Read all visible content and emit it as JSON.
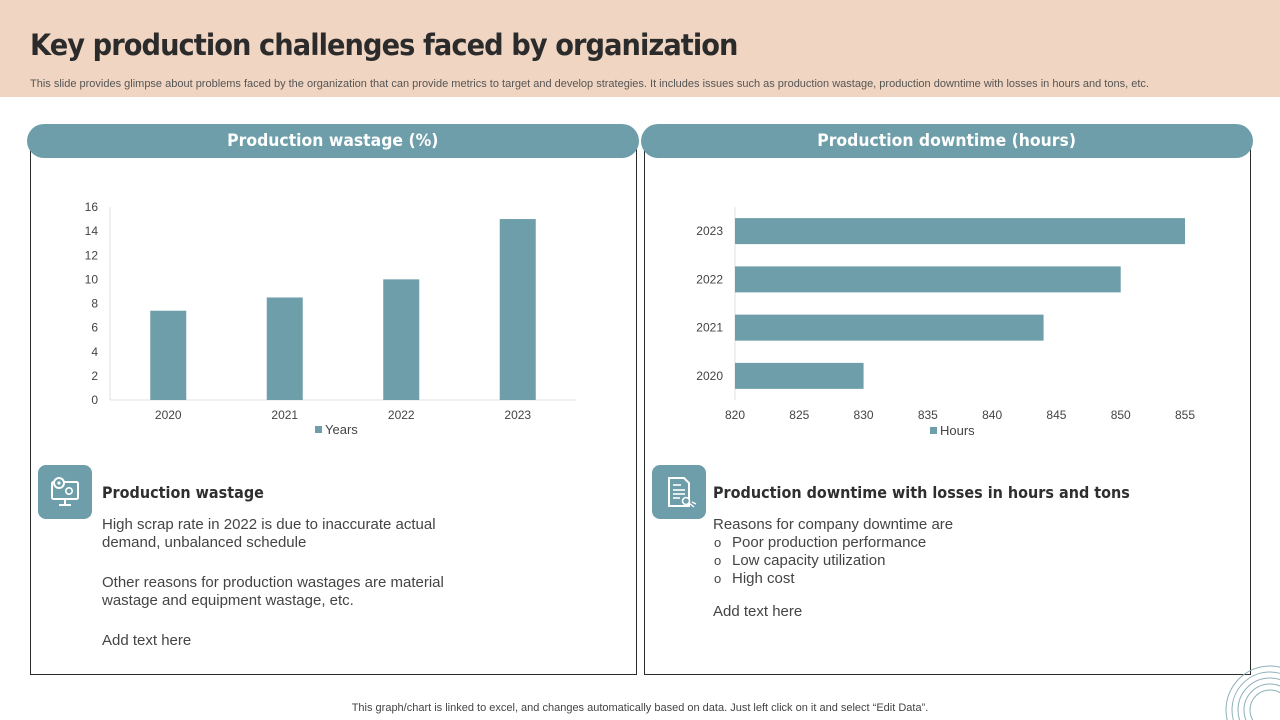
{
  "title": "Key production challenges faced by organization",
  "subtitle": "This slide provides glimpse about problems faced by the organization that can provide metrics to target and develop strategies. It includes issues such as production wastage, production downtime with losses in hours and tons, etc.",
  "colors": {
    "accent": "#6d9ea9",
    "header_bg": "#f0d5c2"
  },
  "left_panel": {
    "heading": "Production wastage (%)",
    "icon": "gear-monitor-icon",
    "section_title": "Production wastage",
    "para1": "High scrap rate in 2022 is due to inaccurate actual demand, unbalanced schedule",
    "para2": "Other reasons for production wastages are material wastage and equipment wastage, etc.",
    "add_text": "Add text here"
  },
  "right_panel": {
    "heading": "Production downtime (hours)",
    "icon": "document-certificate-icon",
    "section_title": "Production downtime with losses in hours and tons",
    "intro": "Reasons for company downtime are",
    "bullets": [
      "Poor production performance",
      "Low capacity utilization",
      "High cost"
    ],
    "add_text": "Add text here"
  },
  "footer": "This graph/chart is linked to excel,  and changes automatically based on data. Just left click on it and select “Edit Data”.",
  "chart_data": [
    {
      "type": "bar",
      "orientation": "vertical",
      "title": "Production wastage (%)",
      "categories": [
        "2020",
        "2021",
        "2022",
        "2023"
      ],
      "series": [
        {
          "name": "Years",
          "values": [
            7.4,
            8.5,
            10,
            15
          ]
        }
      ],
      "ylim": [
        0,
        16
      ],
      "yticks": [
        "0",
        "2",
        "4",
        "6",
        "8",
        "10",
        "12",
        "14",
        "16"
      ],
      "legend": "bottom",
      "grid": false
    },
    {
      "type": "bar",
      "orientation": "horizontal",
      "title": "Production downtime (hours)",
      "categories": [
        "2020",
        "2021",
        "2022",
        "2023"
      ],
      "series": [
        {
          "name": "Hours",
          "values": [
            830,
            844,
            850,
            855
          ]
        }
      ],
      "xlim": [
        820,
        855
      ],
      "xticks": [
        "820",
        "825",
        "830",
        "835",
        "840",
        "845",
        "850",
        "855"
      ],
      "legend": "bottom",
      "grid": false
    }
  ]
}
